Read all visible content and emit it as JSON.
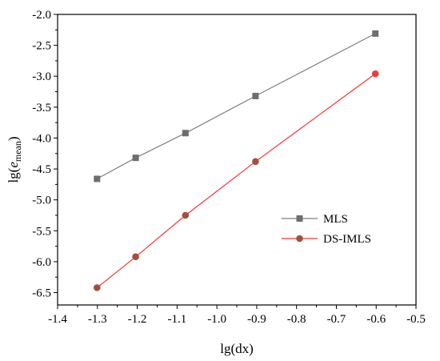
{
  "chart_data": {
    "type": "line",
    "title": "",
    "xlabel": "lg(dx)",
    "ylabel": {
      "prefix": "lg(",
      "italic": "e",
      "subscript": "mean",
      "suffix": ")"
    },
    "xlim": [
      -1.4,
      -0.5
    ],
    "ylim": [
      -6.7,
      -2.0
    ],
    "xticks": [
      "-1.4",
      "-1.3",
      "-1.2",
      "-1.1",
      "-1.0",
      "-0.9",
      "-0.8",
      "-0.7",
      "-0.6",
      "-0.5"
    ],
    "yticks": [
      "-2.0",
      "-2.5",
      "-3.0",
      "-3.5",
      "-4.0",
      "-4.5",
      "-5.0",
      "-5.5",
      "-6.0",
      "-6.5"
    ],
    "grid": false,
    "legend_position": "center-right",
    "series": [
      {
        "name": "MLS",
        "marker": "square",
        "line_color": "#7f7f7f",
        "marker_color": "#6e6e6e",
        "x": [
          -1.301,
          -1.204,
          -1.079,
          -0.903,
          -0.602
        ],
        "y": [
          -4.66,
          -4.32,
          -3.92,
          -3.32,
          -2.31
        ]
      },
      {
        "name": "DS-IMLS",
        "marker": "circle",
        "line_color": "#ff3030",
        "marker_color": "#a0503c",
        "x": [
          -1.301,
          -1.204,
          -1.079,
          -0.903,
          -0.602
        ],
        "y": [
          -6.42,
          -5.92,
          -5.25,
          -4.38,
          -2.96
        ]
      }
    ]
  }
}
